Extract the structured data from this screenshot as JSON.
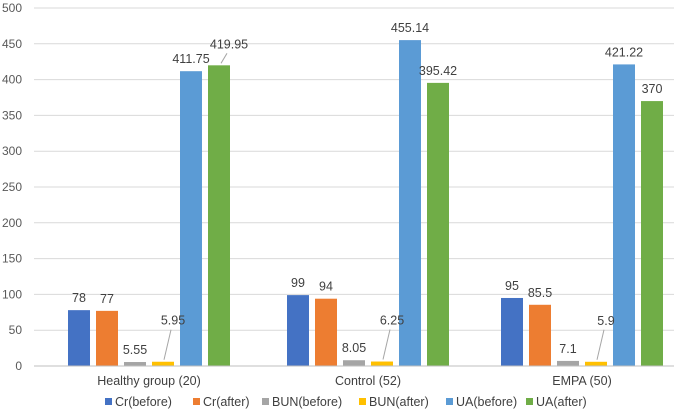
{
  "chart_data": {
    "type": "bar",
    "title": "",
    "xlabel": "",
    "ylabel": "",
    "ylim": [
      0,
      500
    ],
    "yticks": [
      0,
      50,
      100,
      150,
      200,
      250,
      300,
      350,
      400,
      450,
      500
    ],
    "grid": true,
    "legend_position": "bottom",
    "categories": [
      "Healthy group (20)",
      "Control (52)",
      "EMPA (50)"
    ],
    "series": [
      {
        "name": "Cr(before)",
        "color": "#4472C4",
        "values": [
          78,
          99,
          95
        ],
        "labels": [
          "78",
          "99",
          "95"
        ]
      },
      {
        "name": "Cr(after)",
        "color": "#ED7D31",
        "values": [
          77,
          94,
          85.5
        ],
        "labels": [
          "77",
          "94",
          "85.5"
        ]
      },
      {
        "name": "BUN(before)",
        "color": "#A5A5A5",
        "values": [
          5.55,
          8.05,
          7.1
        ],
        "labels": [
          "5.55",
          "8.05",
          "7.1"
        ]
      },
      {
        "name": "BUN(after)",
        "color": "#FFC000",
        "values": [
          5.95,
          6.25,
          5.9
        ],
        "labels": [
          "5.95",
          "6.25",
          "5.9"
        ]
      },
      {
        "name": "UA(before)",
        "color": "#5B9BD5",
        "values": [
          411.75,
          455.14,
          421.22
        ],
        "labels": [
          "411.75",
          "455.14",
          "421.22"
        ]
      },
      {
        "name": "UA(after)",
        "color": "#70AD47",
        "values": [
          419.95,
          395.42,
          370
        ],
        "labels": [
          "419.95",
          "395.42",
          "370"
        ]
      }
    ]
  }
}
